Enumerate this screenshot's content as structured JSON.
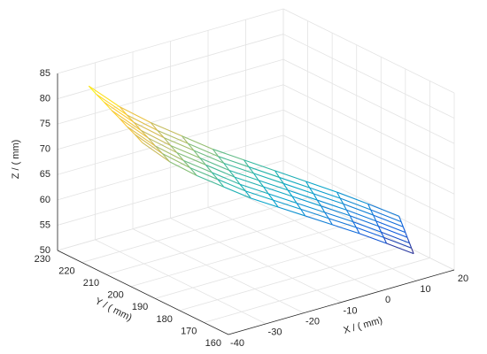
{
  "chart_data": {
    "type": "mesh",
    "xlabel": "X / ( mm)",
    "ylabel": "Y / ( mm)",
    "zlabel": "Z / ( mm)",
    "xlim": [
      -40,
      20
    ],
    "ylim": [
      160,
      230
    ],
    "zlim": [
      50,
      85
    ],
    "xticks": [
      -40,
      -30,
      -20,
      -10,
      0,
      10,
      20
    ],
    "yticks": [
      160,
      170,
      180,
      190,
      200,
      210,
      220,
      230
    ],
    "zticks": [
      50,
      55,
      60,
      65,
      70,
      75,
      80,
      85
    ],
    "grid": true,
    "colormap": [
      "#352a87",
      "#0f5cdd",
      "#1481d6",
      "#06a4ca",
      "#2eb7a4",
      "#87bf77",
      "#d1bb59",
      "#fec832",
      "#f9fb0e"
    ],
    "x": [
      -33,
      -28,
      -23,
      -18,
      -13,
      -8,
      -3,
      2,
      7,
      12,
      17
    ],
    "y": [
      [
        228,
        224.9,
        221.7,
        218.6,
        215.4,
        212.3,
        209.1,
        206
      ],
      [
        223,
        220.1,
        217.2,
        214.3,
        211.3,
        208.4,
        205.5,
        202.6
      ],
      [
        218,
        215.3,
        212.6,
        209.9,
        207.3,
        204.6,
        201.9,
        199.2
      ],
      [
        213,
        210.5,
        208.1,
        205.6,
        203.2,
        200.7,
        198.3,
        195.8
      ],
      [
        208,
        205.8,
        203.5,
        201.3,
        199.1,
        196.9,
        194.6,
        192.4
      ],
      [
        203,
        201,
        199,
        197,
        195,
        193,
        191,
        189
      ],
      [
        198,
        196.2,
        194.5,
        192.7,
        190.9,
        189.1,
        187.4,
        185.6
      ],
      [
        193,
        191.5,
        189.9,
        188.4,
        186.8,
        185.3,
        183.7,
        182.2
      ],
      [
        188,
        186.7,
        185.4,
        184.1,
        182.7,
        181.4,
        180.1,
        178.8
      ],
      [
        183,
        181.9,
        180.8,
        179.7,
        178.7,
        177.6,
        176.5,
        175.4
      ],
      [
        178,
        177.1,
        176.3,
        175.4,
        174.6,
        173.7,
        172.9,
        172
      ]
    ],
    "z": [
      [
        81.5,
        80.6,
        79.8,
        78.9,
        78.1,
        77.2,
        76.4,
        75.5
      ],
      [
        77.5,
        76.6,
        75.8,
        74.9,
        74.1,
        73.2,
        72.4,
        71.5
      ],
      [
        74.5,
        73.6,
        72.8,
        71.9,
        71.1,
        70.2,
        69.4,
        68.5
      ],
      [
        72,
        71.1,
        70.3,
        69.4,
        68.6,
        67.7,
        66.9,
        66
      ],
      [
        69.5,
        68.6,
        67.8,
        66.9,
        66.1,
        65.2,
        64.4,
        63.5
      ],
      [
        67.5,
        66.6,
        65.8,
        64.9,
        64.1,
        63.2,
        62.4,
        61.5
      ],
      [
        65.5,
        64.6,
        63.8,
        62.9,
        62.1,
        61.2,
        60.4,
        59.5
      ],
      [
        63.5,
        62.6,
        61.8,
        60.9,
        60.1,
        59.2,
        58.4,
        57.5
      ],
      [
        61.5,
        60.6,
        59.8,
        58.9,
        58.1,
        57.2,
        56.4,
        55.5
      ],
      [
        59.3,
        58.4,
        57.6,
        56.7,
        55.9,
        55,
        54.2,
        53.3
      ],
      [
        57,
        56.1,
        55.3,
        54.4,
        53.6,
        52.7,
        51.9,
        51
      ]
    ]
  }
}
